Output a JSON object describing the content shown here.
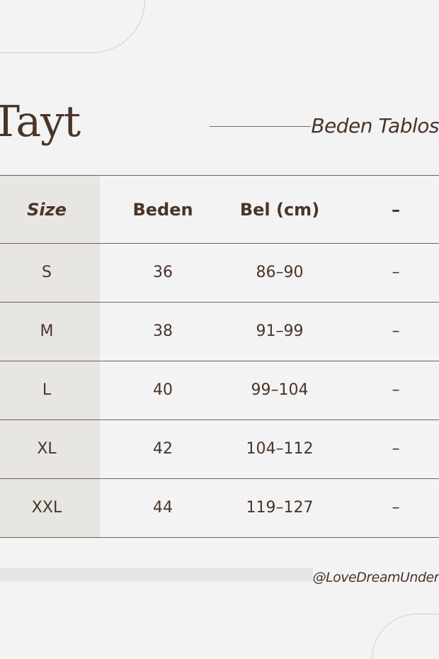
{
  "title": "Tayt",
  "subtitle": "Beden Tablos",
  "table": {
    "headers": [
      "Size",
      "Beden",
      "Bel (cm)",
      "–"
    ],
    "rows": [
      [
        "S",
        "36",
        "86–90",
        "–"
      ],
      [
        "M",
        "38",
        "91–99",
        "–"
      ],
      [
        "L",
        "40",
        "99–104",
        "–"
      ],
      [
        "XL",
        "42",
        "104–112",
        "–"
      ],
      [
        "XXL",
        "44",
        "119–127",
        "–"
      ]
    ]
  },
  "footer": {
    "handle": "@LoveDreamUnder"
  },
  "colors": {
    "background": "#f3f3f3",
    "text": "#4a3428",
    "shade": "#e8e6e2",
    "rule": "#6f605a"
  }
}
